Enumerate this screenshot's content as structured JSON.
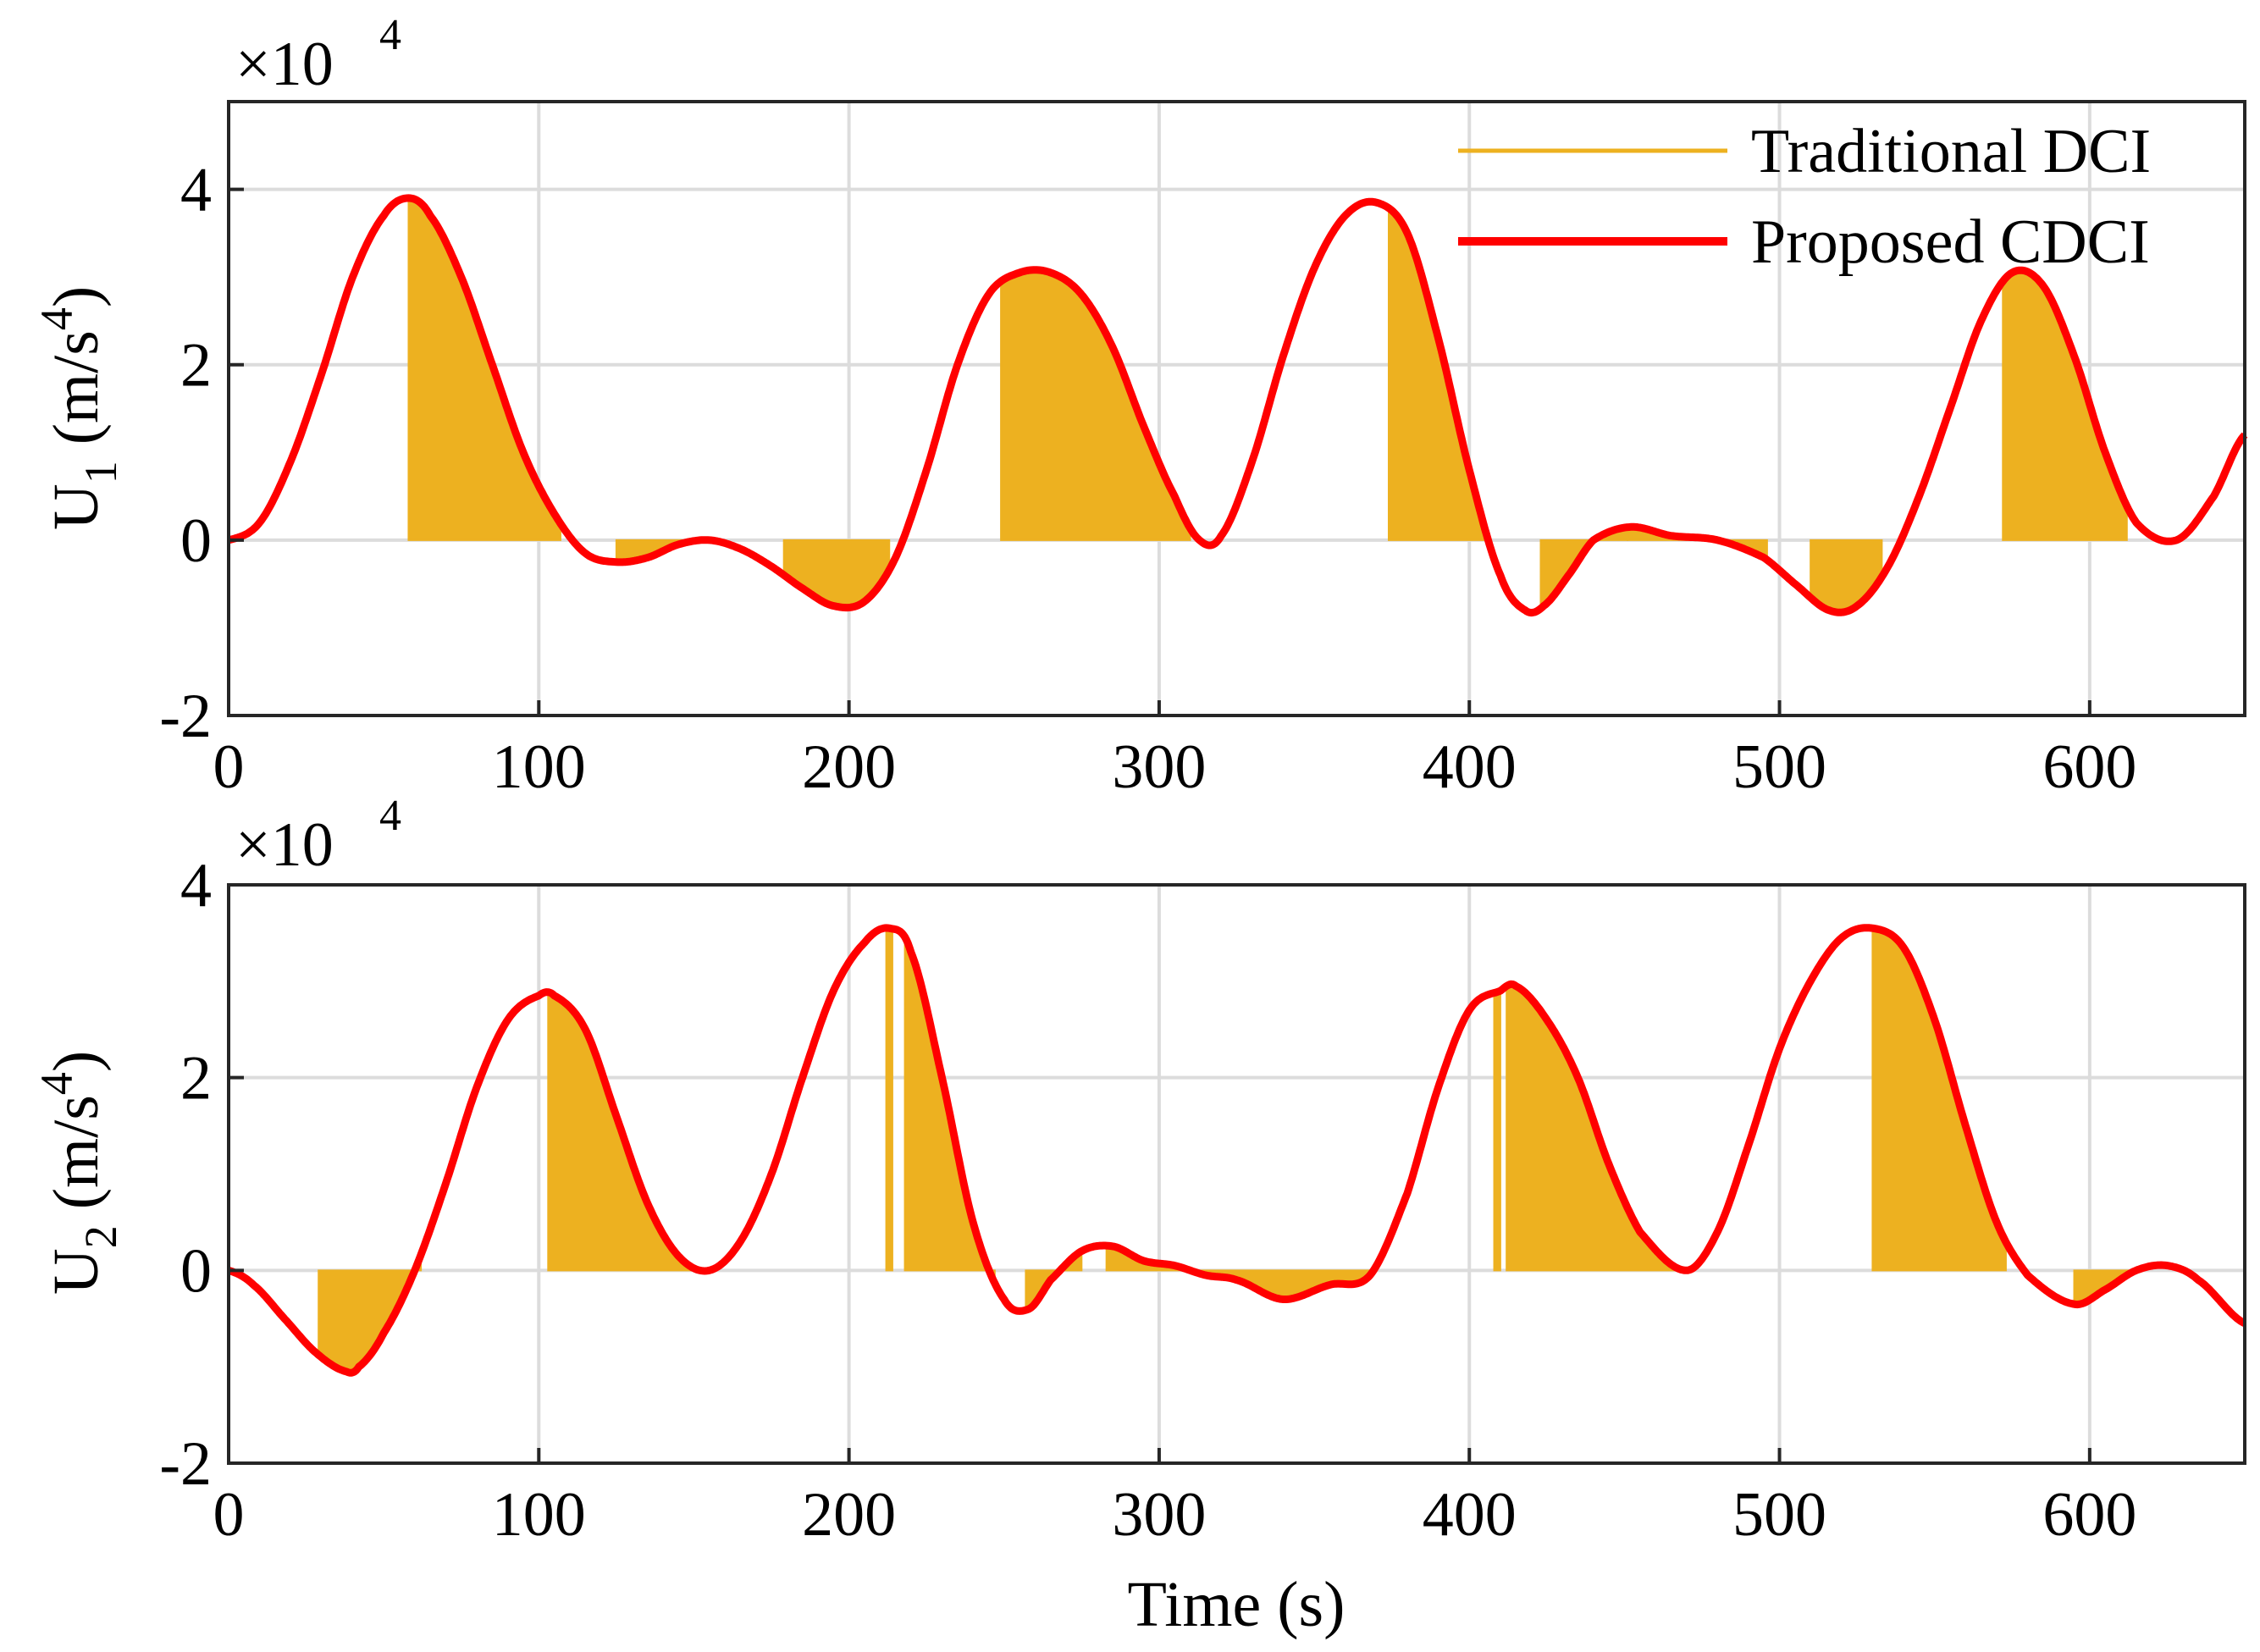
{
  "chart_data": [
    {
      "type": "line",
      "id": "U1",
      "title": "",
      "xlabel": "",
      "ylabel_main": "U",
      "ylabel_sub": "1",
      "ylabel_unit": " (m/s",
      "ylabel_sup": "4",
      "ylabel_close": ")",
      "exponent_base": "×10",
      "exponent_power": "4",
      "xlim": [
        0,
        650
      ],
      "ylim": [
        -2,
        5
      ],
      "xticks": [
        0,
        100,
        200,
        300,
        400,
        500,
        600
      ],
      "yticks": [
        -2,
        0,
        2,
        4
      ],
      "xtick_labels": [
        "0",
        "100",
        "200",
        "300",
        "400",
        "500",
        "600"
      ],
      "ytick_labels": [
        "-2",
        "0",
        "2",
        "4"
      ],
      "grid": true,
      "legend_position": "top-right",
      "series": [
        {
          "name": "Proposed CDCI",
          "color": "#ff0000",
          "style": "smooth curve",
          "x": [
            0,
            10,
            20,
            30,
            40,
            50,
            58,
            65,
            75,
            85,
            95,
            105,
            115,
            125,
            135,
            145,
            155,
            165,
            175,
            185,
            195,
            205,
            215,
            225,
            235,
            245,
            255,
            265,
            275,
            285,
            295,
            305,
            313,
            320,
            330,
            340,
            350,
            360,
            370,
            380,
            390,
            400,
            410,
            418,
            424,
            432,
            440,
            452,
            465,
            480,
            495,
            505,
            516,
            525,
            535,
            545,
            555,
            565,
            575,
            585,
            595,
            605,
            615,
            628,
            640,
            650
          ],
          "y": [
            0,
            0.2,
            0.9,
            1.9,
            3.0,
            3.7,
            3.9,
            3.7,
            3.0,
            2.0,
            1.0,
            0.3,
            -0.15,
            -0.25,
            -0.2,
            -0.05,
            0.0,
            -0.1,
            -0.3,
            -0.55,
            -0.75,
            -0.7,
            -0.2,
            0.8,
            2.0,
            2.8,
            3.05,
            3.05,
            2.8,
            2.2,
            1.3,
            0.5,
            0.0,
            0.05,
            0.9,
            2.1,
            3.1,
            3.7,
            3.85,
            3.5,
            2.3,
            0.8,
            -0.4,
            -0.8,
            -0.75,
            -0.4,
            0.0,
            0.15,
            0.05,
            0.0,
            -0.2,
            -0.5,
            -0.8,
            -0.75,
            -0.3,
            0.5,
            1.5,
            2.5,
            3.05,
            2.9,
            2.1,
            1.0,
            0.2,
            0.0,
            0.5,
            1.2
          ]
        },
        {
          "name": "Traditional DCI",
          "color": "#edb120",
          "style": "sampled-hold fill between curve and zero",
          "shaded_intervals": [
            [
              58,
              107
            ],
            [
              125,
              155
            ],
            [
              179,
              213
            ],
            [
              249,
              310
            ],
            [
              374,
              405
            ],
            [
              423,
              451
            ],
            [
              451,
              496
            ],
            [
              510,
              533
            ],
            [
              572,
              612
            ]
          ]
        }
      ]
    },
    {
      "type": "line",
      "id": "U2",
      "title": "",
      "xlabel": "Time (s)",
      "ylabel_main": "U",
      "ylabel_sub": "2",
      "ylabel_unit": " (m/s",
      "ylabel_sup": "4",
      "ylabel_close": ")",
      "exponent_base": "×10",
      "exponent_power": "4",
      "xlim": [
        0,
        650
      ],
      "ylim": [
        -2,
        4
      ],
      "xticks": [
        0,
        100,
        200,
        300,
        400,
        500,
        600
      ],
      "yticks": [
        -2,
        0,
        2,
        4
      ],
      "xtick_labels": [
        "0",
        "100",
        "200",
        "300",
        "400",
        "500",
        "600"
      ],
      "ytick_labels": [
        "-2",
        "0",
        "2",
        "4"
      ],
      "grid": true,
      "series": [
        {
          "name": "Proposed CDCI",
          "color": "#ff0000",
          "style": "smooth curve",
          "x": [
            0,
            8,
            18,
            28,
            38,
            42,
            50,
            60,
            70,
            80,
            90,
            100,
            105,
            115,
            125,
            135,
            145,
            155,
            165,
            175,
            185,
            195,
            205,
            213,
            220,
            230,
            240,
            250,
            258,
            265,
            275,
            285,
            295,
            305,
            315,
            325,
            340,
            355,
            368,
            380,
            390,
            400,
            410,
            415,
            425,
            435,
            445,
            455,
            470,
            480,
            490,
            500,
            510,
            520,
            530,
            540,
            550,
            560,
            570,
            580,
            595,
            605,
            615,
            625,
            635,
            650
          ],
          "y": [
            0,
            -0.15,
            -0.5,
            -0.85,
            -1.05,
            -1.0,
            -0.65,
            0.0,
            0.9,
            1.9,
            2.6,
            2.85,
            2.85,
            2.5,
            1.6,
            0.7,
            0.15,
            0.0,
            0.3,
            1.0,
            2.0,
            2.9,
            3.4,
            3.55,
            3.3,
            2.0,
            0.5,
            -0.3,
            -0.4,
            -0.1,
            0.2,
            0.25,
            0.1,
            0.05,
            -0.05,
            -0.1,
            -0.3,
            -0.15,
            -0.05,
            0.8,
            1.9,
            2.7,
            2.9,
            2.95,
            2.6,
            2.0,
            1.1,
            0.4,
            0.0,
            0.4,
            1.3,
            2.3,
            3.0,
            3.45,
            3.55,
            3.35,
            2.6,
            1.5,
            0.5,
            -0.05,
            -0.35,
            -0.2,
            0.0,
            0.05,
            -0.1,
            -0.55
          ]
        },
        {
          "name": "Traditional DCI",
          "color": "#edb120",
          "style": "sampled-hold fill between curve and zero",
          "shaded_intervals": [
            [
              29,
              62
            ],
            [
              103,
              155
            ],
            [
              212,
              214
            ],
            [
              218,
              247
            ],
            [
              257,
              275
            ],
            [
              283,
              368
            ],
            [
              408,
              410
            ],
            [
              412,
              468
            ],
            [
              530,
              573
            ],
            [
              595,
              617
            ]
          ]
        }
      ]
    }
  ],
  "legend": {
    "items": [
      {
        "label": "Traditional DCI",
        "color": "#edb120",
        "line": "thin"
      },
      {
        "label": "Proposed CDCI",
        "color": "#ff0000",
        "line": "thick"
      }
    ]
  }
}
